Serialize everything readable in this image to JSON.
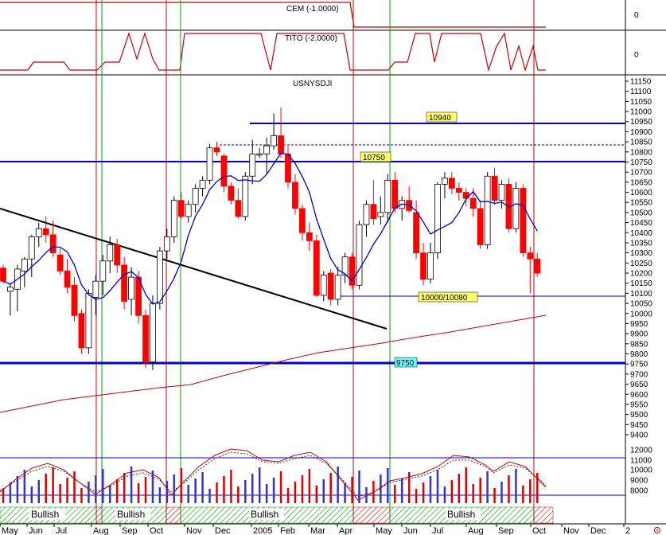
{
  "panels": {
    "cem_title": "CEM (-1.0000)",
    "cem_axis": [
      "0",
      "0"
    ],
    "tito_title": "TITO (-2.0000)",
    "tito_axis": "0",
    "main_title": "USNYSDJI"
  },
  "colors": {
    "bull": "#ffffff",
    "bear": "#ff0000",
    "ma_short": "#0000cc",
    "ma_long": "#cc0000",
    "resistance": "#0000cc",
    "trendline": "#000000",
    "vline_red": "#cc0000",
    "vline_green": "#00aa00",
    "label_yellow": "#ffff66",
    "label_cyan": "#66ffff",
    "vol_up": "#3333cc",
    "vol_down": "#dd0000",
    "hatch_green": "#009900",
    "hatch_red": "#cc0000"
  },
  "annotations": {
    "level_10940": "10940",
    "level_10750": "10750",
    "level_10000": "10000/10080",
    "level_9750": "9750"
  },
  "x_labels": [
    "May",
    "Jun",
    "Jul",
    "Aug",
    "Sep",
    "Oct",
    "Nov",
    "Dec",
    "2005",
    "Feb",
    "Mar",
    "Apr",
    "May",
    "Jun",
    "Jul",
    "Aug",
    "Sep",
    "Oct",
    "Nov",
    "Dec",
    "2"
  ],
  "signal_bars": [
    "Bullish",
    "Bullish",
    "Bullish",
    "Bullish"
  ],
  "chart_data": {
    "type": "candlestick",
    "title": "USNYSDJI",
    "ylim": [
      9300,
      11150
    ],
    "yticks": [
      11150,
      11100,
      11050,
      11000,
      10950,
      10900,
      10850,
      10800,
      10750,
      10700,
      10650,
      10600,
      10550,
      10500,
      10450,
      10400,
      10350,
      10300,
      10250,
      10200,
      10150,
      10100,
      10050,
      10000,
      9950,
      9900,
      9850,
      9800,
      9750,
      9700,
      9650,
      9600,
      9550,
      9500,
      9450,
      9400
    ],
    "volume_ticks": [
      12000,
      11000,
      10000,
      9000,
      8000
    ],
    "horizontal_levels": [
      10940,
      10835,
      10750,
      10080,
      9750
    ],
    "candles": [
      {
        "o": 10225,
        "h": 10240,
        "l": 10150,
        "c": 10160
      },
      {
        "o": 10110,
        "h": 10150,
        "l": 9990,
        "c": 10130
      },
      {
        "o": 10120,
        "h": 10240,
        "l": 10010,
        "c": 10220
      },
      {
        "o": 10210,
        "h": 10280,
        "l": 10130,
        "c": 10270
      },
      {
        "o": 10270,
        "h": 10390,
        "l": 10180,
        "c": 10380
      },
      {
        "o": 10380,
        "h": 10450,
        "l": 10330,
        "c": 10420
      },
      {
        "o": 10420,
        "h": 10480,
        "l": 10350,
        "c": 10390
      },
      {
        "o": 10390,
        "h": 10460,
        "l": 10280,
        "c": 10300
      },
      {
        "o": 10290,
        "h": 10320,
        "l": 10190,
        "c": 10210
      },
      {
        "o": 10210,
        "h": 10270,
        "l": 10100,
        "c": 10130
      },
      {
        "o": 10140,
        "h": 10180,
        "l": 9960,
        "c": 9990
      },
      {
        "o": 10000,
        "h": 10020,
        "l": 9800,
        "c": 9830
      },
      {
        "o": 9830,
        "h": 10120,
        "l": 9800,
        "c": 10100
      },
      {
        "o": 10080,
        "h": 10190,
        "l": 9990,
        "c": 10160
      },
      {
        "o": 10160,
        "h": 10290,
        "l": 10090,
        "c": 10260
      },
      {
        "o": 10260,
        "h": 10380,
        "l": 10200,
        "c": 10340
      },
      {
        "o": 10340,
        "h": 10370,
        "l": 10200,
        "c": 10240
      },
      {
        "o": 10240,
        "h": 10280,
        "l": 10020,
        "c": 10060
      },
      {
        "o": 10070,
        "h": 10230,
        "l": 9990,
        "c": 10180
      },
      {
        "o": 10180,
        "h": 10210,
        "l": 9950,
        "c": 9990
      },
      {
        "o": 9990,
        "h": 10020,
        "l": 9730,
        "c": 9760
      },
      {
        "o": 9760,
        "h": 10090,
        "l": 9720,
        "c": 10050
      },
      {
        "o": 10050,
        "h": 10330,
        "l": 10020,
        "c": 10310
      },
      {
        "o": 10310,
        "h": 10420,
        "l": 10270,
        "c": 10380
      },
      {
        "o": 10380,
        "h": 10580,
        "l": 10350,
        "c": 10560
      },
      {
        "o": 10560,
        "h": 10600,
        "l": 10470,
        "c": 10480
      },
      {
        "o": 10480,
        "h": 10560,
        "l": 10450,
        "c": 10540
      },
      {
        "o": 10540,
        "h": 10640,
        "l": 10500,
        "c": 10620
      },
      {
        "o": 10620,
        "h": 10680,
        "l": 10580,
        "c": 10660
      },
      {
        "o": 10660,
        "h": 10840,
        "l": 10640,
        "c": 10820
      },
      {
        "o": 10820,
        "h": 10850,
        "l": 10780,
        "c": 10800
      },
      {
        "o": 10780,
        "h": 10790,
        "l": 10600,
        "c": 10630
      },
      {
        "o": 10630,
        "h": 10650,
        "l": 10540,
        "c": 10560
      },
      {
        "o": 10560,
        "h": 10620,
        "l": 10470,
        "c": 10480
      },
      {
        "o": 10480,
        "h": 10700,
        "l": 10460,
        "c": 10680
      },
      {
        "o": 10680,
        "h": 10860,
        "l": 10640,
        "c": 10790
      },
      {
        "o": 10790,
        "h": 10820,
        "l": 10770,
        "c": 10790
      },
      {
        "o": 10790,
        "h": 10870,
        "l": 10690,
        "c": 10830
      },
      {
        "o": 10830,
        "h": 10990,
        "l": 10810,
        "c": 10880
      },
      {
        "o": 10880,
        "h": 11020,
        "l": 10770,
        "c": 10790
      },
      {
        "o": 10790,
        "h": 10830,
        "l": 10620,
        "c": 10650
      },
      {
        "o": 10650,
        "h": 10690,
        "l": 10490,
        "c": 10520
      },
      {
        "o": 10520,
        "h": 10540,
        "l": 10360,
        "c": 10400
      },
      {
        "o": 10400,
        "h": 10450,
        "l": 10310,
        "c": 10360
      },
      {
        "o": 10360,
        "h": 10390,
        "l": 10080,
        "c": 10090
      },
      {
        "o": 10090,
        "h": 10210,
        "l": 10060,
        "c": 10190
      },
      {
        "o": 10200,
        "h": 10220,
        "l": 10040,
        "c": 10070
      },
      {
        "o": 10070,
        "h": 10230,
        "l": 10040,
        "c": 10190
      },
      {
        "o": 10190,
        "h": 10300,
        "l": 10150,
        "c": 10280
      },
      {
        "o": 10280,
        "h": 10300,
        "l": 10120,
        "c": 10140
      },
      {
        "o": 10140,
        "h": 10460,
        "l": 10120,
        "c": 10440
      },
      {
        "o": 10440,
        "h": 10560,
        "l": 10380,
        "c": 10540
      },
      {
        "o": 10540,
        "h": 10660,
        "l": 10440,
        "c": 10470
      },
      {
        "o": 10480,
        "h": 10580,
        "l": 10440,
        "c": 10500
      },
      {
        "o": 10500,
        "h": 10690,
        "l": 10450,
        "c": 10660
      },
      {
        "o": 10660,
        "h": 10700,
        "l": 10500,
        "c": 10520
      },
      {
        "o": 10520,
        "h": 10580,
        "l": 10460,
        "c": 10560
      },
      {
        "o": 10560,
        "h": 10630,
        "l": 10500,
        "c": 10510
      },
      {
        "o": 10500,
        "h": 10560,
        "l": 10270,
        "c": 10300
      },
      {
        "o": 10300,
        "h": 10350,
        "l": 10140,
        "c": 10170
      },
      {
        "o": 10170,
        "h": 10350,
        "l": 10150,
        "c": 10300
      },
      {
        "o": 10300,
        "h": 10650,
        "l": 10270,
        "c": 10640
      },
      {
        "o": 10640,
        "h": 10700,
        "l": 10570,
        "c": 10670
      },
      {
        "o": 10670,
        "h": 10700,
        "l": 10590,
        "c": 10620
      },
      {
        "o": 10620,
        "h": 10650,
        "l": 10560,
        "c": 10600
      },
      {
        "o": 10600,
        "h": 10620,
        "l": 10530,
        "c": 10570
      },
      {
        "o": 10570,
        "h": 10620,
        "l": 10480,
        "c": 10520
      },
      {
        "o": 10520,
        "h": 10560,
        "l": 10320,
        "c": 10340
      },
      {
        "o": 10340,
        "h": 10700,
        "l": 10320,
        "c": 10680
      },
      {
        "o": 10680,
        "h": 10720,
        "l": 10540,
        "c": 10560
      },
      {
        "o": 10560,
        "h": 10660,
        "l": 10520,
        "c": 10640
      },
      {
        "o": 10640,
        "h": 10670,
        "l": 10400,
        "c": 10420
      },
      {
        "o": 10420,
        "h": 10650,
        "l": 10400,
        "c": 10620
      },
      {
        "o": 10620,
        "h": 10640,
        "l": 10280,
        "c": 10300
      },
      {
        "o": 10300,
        "h": 10330,
        "l": 10100,
        "c": 10270
      },
      {
        "o": 10270,
        "h": 10300,
        "l": 10180,
        "c": 10200
      }
    ]
  }
}
